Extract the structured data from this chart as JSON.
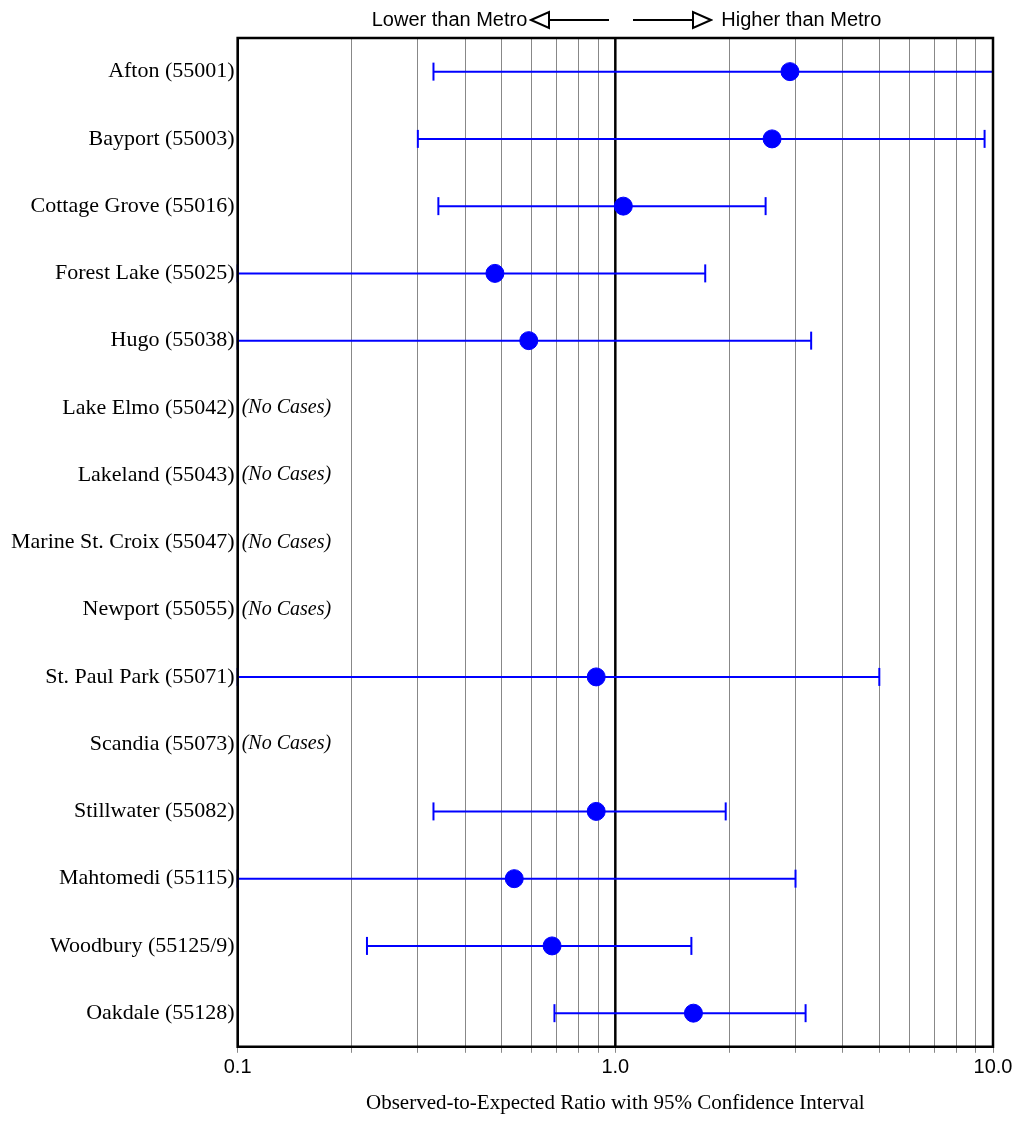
{
  "chart_data": {
    "type": "scatter",
    "orientation": "horizontal",
    "xlabel": "Observed-to-Expected Ratio with 95% Confidence Interval",
    "categories": [
      "Afton (55001)",
      "Bayport (55003)",
      "Cottage Grove (55016)",
      "Forest Lake (55025)",
      "Hugo (55038)",
      "Lake Elmo (55042)",
      "Lakeland (55043)",
      "Marine St. Croix (55047)",
      "Newport (55055)",
      "St. Paul Park (55071)",
      "Scandia (55073)",
      "Stillwater (55082)",
      "Mahtomedi (55115)",
      "Woodbury (55125/9)",
      "Oakdale (55128)"
    ],
    "series": [
      {
        "color": "#0000ff",
        "values": [
          2.9,
          2.6,
          1.05,
          0.48,
          0.59,
          null,
          null,
          null,
          null,
          0.89,
          null,
          0.89,
          0.54,
          0.68,
          1.61
        ],
        "errors": [
          [
            0.33,
            10
          ],
          [
            0.3,
            9.5
          ],
          [
            0.34,
            2.5
          ],
          [
            0.1,
            1.73
          ],
          [
            0.1,
            3.3
          ],
          null,
          null,
          null,
          null,
          [
            0.1,
            5.0
          ],
          null,
          [
            0.33,
            1.96
          ],
          [
            0.1,
            3.0
          ],
          [
            0.22,
            1.59
          ],
          [
            0.69,
            3.19
          ]
        ]
      }
    ],
    "log": "x",
    "xlim": [
      0.1,
      10
    ],
    "xticks": [
      {
        "value": 0.1,
        "label": "0.1"
      },
      {
        "value": 0.2,
        "label": null
      },
      {
        "value": 0.3,
        "label": null
      },
      {
        "value": 0.4,
        "label": null
      },
      {
        "value": 0.5,
        "label": null
      },
      {
        "value": 0.6,
        "label": null
      },
      {
        "value": 0.7,
        "label": null
      },
      {
        "value": 0.8,
        "label": null
      },
      {
        "value": 0.9,
        "label": null
      },
      {
        "value": 1,
        "label": "1.0"
      },
      {
        "value": 2,
        "label": null
      },
      {
        "value": 3,
        "label": null
      },
      {
        "value": 4,
        "label": null
      },
      {
        "value": 5,
        "label": null
      },
      {
        "value": 6,
        "label": null
      },
      {
        "value": 7,
        "label": null
      },
      {
        "value": 8,
        "label": null
      },
      {
        "value": 9,
        "label": null
      },
      {
        "value": 10,
        "label": "10.0"
      }
    ],
    "grid": "x",
    "marker": "circle",
    "legend": false,
    "ref_lines": [
      {
        "axis": "x",
        "value": 1,
        "color": "#000000"
      }
    ],
    "annotations": [
      "Lower than Metro",
      "Higher than Metro",
      "(No Cases)",
      "(No Cases)",
      "(No Cases)",
      "(No Cases)",
      "(No Cases)"
    ]
  }
}
